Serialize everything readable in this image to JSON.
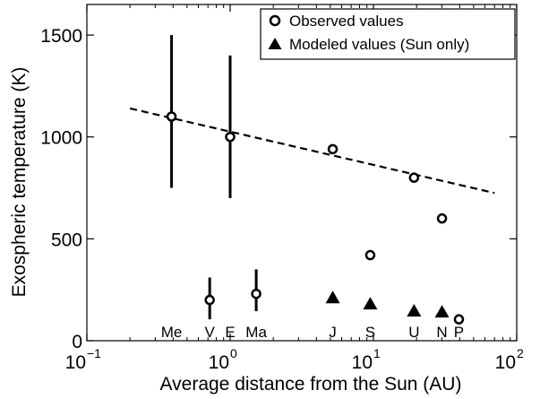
{
  "chart_data": {
    "type": "scatter",
    "title": "",
    "xlabel": "Average distance from the Sun (AU)",
    "ylabel": "Exospheric temperature (K)",
    "xscale": "log",
    "xlim": [
      0.1,
      100
    ],
    "ylim": [
      0,
      1650
    ],
    "x_ticks": [
      {
        "value": 0.1,
        "base": "10",
        "exp": "−1"
      },
      {
        "value": 1,
        "base": "10",
        "exp": "0"
      },
      {
        "value": 10,
        "base": "10",
        "exp": "1"
      },
      {
        "value": 100,
        "base": "10",
        "exp": "2"
      }
    ],
    "y_ticks": [
      {
        "value": 0,
        "label": "0"
      },
      {
        "value": 500,
        "label": "500"
      },
      {
        "value": 1000,
        "label": "1000"
      },
      {
        "value": 1500,
        "label": "1500"
      }
    ],
    "grid": false,
    "legend_position": "top-right",
    "series": [
      {
        "name": "Observed values",
        "marker": "open-circle",
        "points": [
          {
            "x": 0.39,
            "y": 1100,
            "err_lo": 750,
            "err_hi": 1500
          },
          {
            "x": 0.72,
            "y": 200,
            "err_lo": 105,
            "err_hi": 310
          },
          {
            "x": 1.0,
            "y": 1000,
            "err_lo": 700,
            "err_hi": 1400
          },
          {
            "x": 1.52,
            "y": 230,
            "err_lo": 145,
            "err_hi": 350
          },
          {
            "x": 5.2,
            "y": 940
          },
          {
            "x": 9.5,
            "y": 420
          },
          {
            "x": 19.2,
            "y": 800
          },
          {
            "x": 30.1,
            "y": 600
          },
          {
            "x": 39.5,
            "y": 105
          }
        ]
      },
      {
        "name": "Modeled values (Sun only)",
        "marker": "filled-triangle",
        "points": [
          {
            "x": 5.2,
            "y": 210
          },
          {
            "x": 9.5,
            "y": 180
          },
          {
            "x": 19.2,
            "y": 145
          },
          {
            "x": 30.1,
            "y": 140
          }
        ]
      }
    ],
    "trend_line": {
      "style": "dashed",
      "x": [
        0.2,
        70
      ],
      "y": [
        1140,
        725
      ]
    },
    "planet_labels": [
      {
        "label": "Me",
        "x": 0.39
      },
      {
        "label": "V",
        "x": 0.72
      },
      {
        "label": "E",
        "x": 1.0
      },
      {
        "label": "Ma",
        "x": 1.52
      },
      {
        "label": "J",
        "x": 5.2
      },
      {
        "label": "S",
        "x": 9.5
      },
      {
        "label": "U",
        "x": 19.2
      },
      {
        "label": "N",
        "x": 30.1
      },
      {
        "label": "P",
        "x": 39.5
      }
    ]
  }
}
